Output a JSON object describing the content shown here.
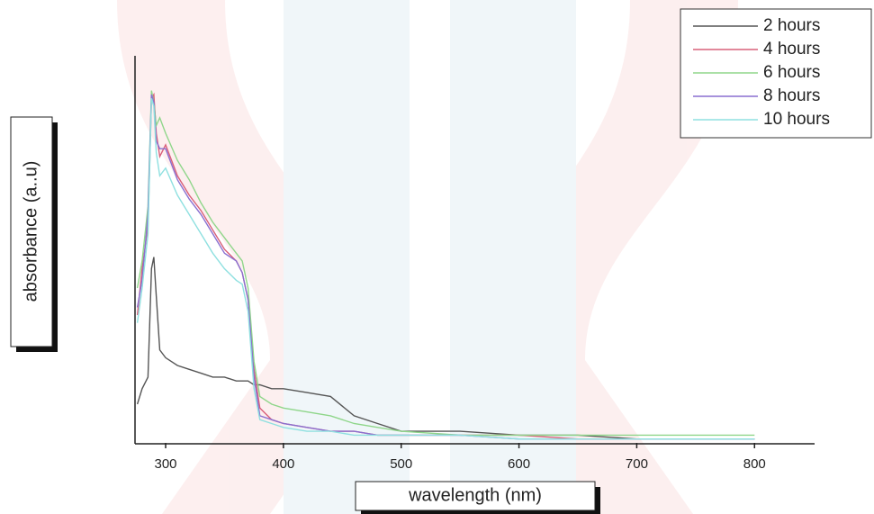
{
  "chart_data": {
    "type": "line",
    "x_label": "wavelength (nm)",
    "y_label": "absorbance (a..u)",
    "x": [
      276,
      280,
      285,
      288,
      290,
      292,
      295,
      300,
      310,
      320,
      330,
      340,
      350,
      360,
      365,
      370,
      375,
      380,
      390,
      400,
      420,
      440,
      460,
      480,
      500,
      550,
      600,
      650,
      700,
      750,
      800
    ],
    "series": [
      {
        "name": "2 hours",
        "color": "#555555",
        "values": [
          0.1,
          0.14,
          0.17,
          0.45,
          0.48,
          0.38,
          0.24,
          0.22,
          0.2,
          0.19,
          0.18,
          0.17,
          0.17,
          0.16,
          0.16,
          0.16,
          0.15,
          0.15,
          0.14,
          0.14,
          0.13,
          0.12,
          0.07,
          0.05,
          0.03,
          0.03,
          0.02,
          0.02,
          0.01,
          0.01,
          0.01
        ]
      },
      {
        "name": "4 hours",
        "color": "#d9607a",
        "values": [
          0.33,
          0.45,
          0.56,
          0.89,
          0.9,
          0.8,
          0.74,
          0.77,
          0.69,
          0.64,
          0.6,
          0.55,
          0.5,
          0.47,
          0.44,
          0.37,
          0.19,
          0.09,
          0.06,
          0.05,
          0.04,
          0.03,
          0.03,
          0.02,
          0.02,
          0.02,
          0.02,
          0.01,
          0.01,
          0.01,
          0.01
        ]
      },
      {
        "name": "6 hours",
        "color": "#8fd68a",
        "values": [
          0.4,
          0.47,
          0.61,
          0.91,
          0.88,
          0.82,
          0.84,
          0.8,
          0.73,
          0.68,
          0.62,
          0.57,
          0.53,
          0.49,
          0.47,
          0.4,
          0.21,
          0.12,
          0.1,
          0.09,
          0.08,
          0.07,
          0.05,
          0.04,
          0.03,
          0.02,
          0.02,
          0.02,
          0.02,
          0.02,
          0.02
        ]
      },
      {
        "name": "8 hours",
        "color": "#8a6fd0",
        "values": [
          0.35,
          0.42,
          0.59,
          0.9,
          0.88,
          0.78,
          0.76,
          0.76,
          0.68,
          0.63,
          0.59,
          0.54,
          0.49,
          0.47,
          0.44,
          0.37,
          0.17,
          0.07,
          0.06,
          0.05,
          0.04,
          0.03,
          0.03,
          0.02,
          0.02,
          0.02,
          0.01,
          0.01,
          0.01,
          0.01,
          0.01
        ]
      },
      {
        "name": "10 hours",
        "color": "#8fe0e0",
        "values": [
          0.31,
          0.4,
          0.54,
          0.89,
          0.87,
          0.75,
          0.69,
          0.71,
          0.64,
          0.59,
          0.54,
          0.49,
          0.45,
          0.42,
          0.41,
          0.34,
          0.14,
          0.06,
          0.05,
          0.04,
          0.03,
          0.03,
          0.02,
          0.02,
          0.02,
          0.02,
          0.01,
          0.01,
          0.01,
          0.01,
          0.01
        ]
      }
    ],
    "xlim": [
      274,
      851
    ],
    "ylim": [
      0,
      1
    ],
    "xticks": [
      300,
      400,
      500,
      600,
      700,
      800
    ]
  }
}
